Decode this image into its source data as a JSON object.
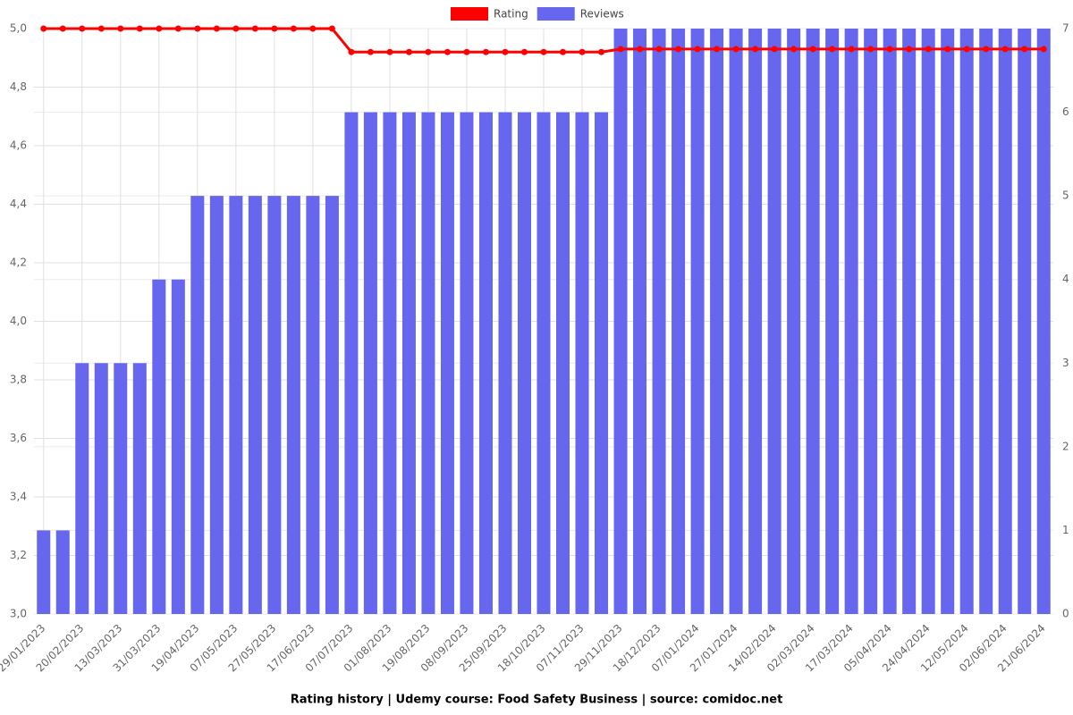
{
  "chart_data": {
    "type": "bar-line",
    "title": "Rating history | Udemy course: Food Safety Business | source: comidoc.net",
    "categories": [
      "29/01/2023",
      null,
      "20/02/2023",
      null,
      "13/03/2023",
      null,
      "31/03/2023",
      null,
      "19/04/2023",
      null,
      "07/05/2023",
      null,
      "27/05/2023",
      null,
      "17/06/2023",
      null,
      "07/07/2023",
      null,
      "01/08/2023",
      null,
      "19/08/2023",
      null,
      "08/09/2023",
      null,
      "25/09/2023",
      null,
      "18/10/2023",
      null,
      "07/11/2023",
      null,
      "29/11/2023",
      null,
      "18/12/2023",
      null,
      "07/01/2024",
      null,
      "27/01/2024",
      null,
      "14/02/2024",
      null,
      "02/03/2024",
      null,
      "17/03/2024",
      null,
      "05/04/2024",
      null,
      "24/04/2024",
      null,
      "12/05/2024",
      null,
      "02/06/2024",
      null,
      "21/06/2024"
    ],
    "series": [
      {
        "name": "Rating",
        "color": "#ff0000",
        "axis": "y",
        "values": [
          5.0,
          5.0,
          5.0,
          5.0,
          5.0,
          5.0,
          5.0,
          5.0,
          5.0,
          5.0,
          5.0,
          5.0,
          5.0,
          5.0,
          5.0,
          5.0,
          4.92,
          4.92,
          4.92,
          4.92,
          4.92,
          4.92,
          4.92,
          4.92,
          4.92,
          4.92,
          4.92,
          4.92,
          4.92,
          4.92,
          4.93,
          4.93,
          4.93,
          4.93,
          4.93,
          4.93,
          4.93,
          4.93,
          4.93,
          4.93,
          4.93,
          4.93,
          4.93,
          4.93,
          4.93,
          4.93,
          4.93,
          4.93,
          4.93,
          4.93,
          4.93,
          4.93,
          4.93
        ]
      },
      {
        "name": "Reviews",
        "color": "#6666ee",
        "axis": "y2",
        "values": [
          1,
          1,
          3,
          3,
          3,
          3,
          4,
          4,
          5,
          5,
          5,
          5,
          5,
          5,
          5,
          5,
          6,
          6,
          6,
          6,
          6,
          6,
          6,
          6,
          6,
          6,
          6,
          6,
          6,
          6,
          7,
          7,
          7,
          7,
          7,
          7,
          7,
          7,
          7,
          7,
          7,
          7,
          7,
          7,
          7,
          7,
          7,
          7,
          7,
          7,
          7,
          7,
          7
        ]
      }
    ],
    "ylim": [
      3.0,
      5.0
    ],
    "yticks": [
      {
        "value": 3.0,
        "label": "3,0"
      },
      {
        "value": 3.2,
        "label": "3,2"
      },
      {
        "value": 3.4,
        "label": "3,4"
      },
      {
        "value": 3.6,
        "label": "3,6"
      },
      {
        "value": 3.8,
        "label": "3,8"
      },
      {
        "value": 4.0,
        "label": "4,0"
      },
      {
        "value": 4.2,
        "label": "4,2"
      },
      {
        "value": 4.4,
        "label": "4,4"
      },
      {
        "value": 4.6,
        "label": "4,6"
      },
      {
        "value": 4.8,
        "label": "4,8"
      },
      {
        "value": 5.0,
        "label": "5,0"
      }
    ],
    "y2lim": [
      0,
      7
    ],
    "y2ticks": [
      0,
      1,
      2,
      3,
      4,
      5,
      6,
      7
    ],
    "grid": true
  }
}
